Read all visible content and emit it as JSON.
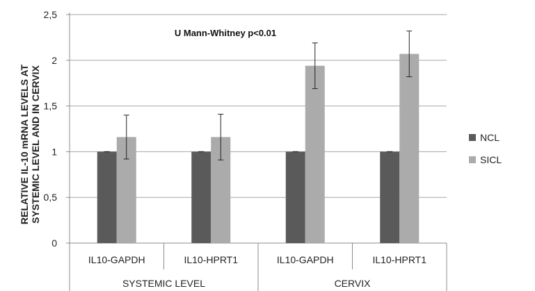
{
  "chart_data": {
    "type": "bar",
    "groups": [
      {
        "label": "SYSTEMIC LEVEL",
        "categories": [
          "IL10-GAPDH",
          "IL10-HPRT1"
        ]
      },
      {
        "label": "CERVIX",
        "categories": [
          "IL10-GAPDH",
          "IL10-HPRT1"
        ]
      }
    ],
    "categories": [
      "IL10-GAPDH",
      "IL10-HPRT1",
      "IL10-GAPDH",
      "IL10-HPRT1"
    ],
    "series": [
      {
        "name": "NCL",
        "values": [
          1,
          1,
          1,
          1
        ],
        "errors": [
          0,
          0,
          0,
          0
        ],
        "color": "#5a5a5a"
      },
      {
        "name": "SICL",
        "values": [
          1.16,
          1.16,
          1.94,
          2.07
        ],
        "errors": [
          0.24,
          0.25,
          0.25,
          0.25
        ],
        "color": "#ababab"
      }
    ],
    "ylabel_lines": [
      "RELATIVE IL-10 mRNA LEVELS AT",
      "SYSTEMIC LEVEL AND IN CERVIX"
    ],
    "ylim": [
      0,
      2.5
    ],
    "yticks": [
      0,
      0.5,
      1,
      1.5,
      2,
      2.5
    ],
    "ytick_labels": [
      "0",
      "0,5",
      "1",
      "1,5",
      "2",
      "2,5"
    ],
    "annotation": "U Mann-Whitney  p<0.01",
    "grid": "horizontal",
    "legend_position": "right"
  }
}
